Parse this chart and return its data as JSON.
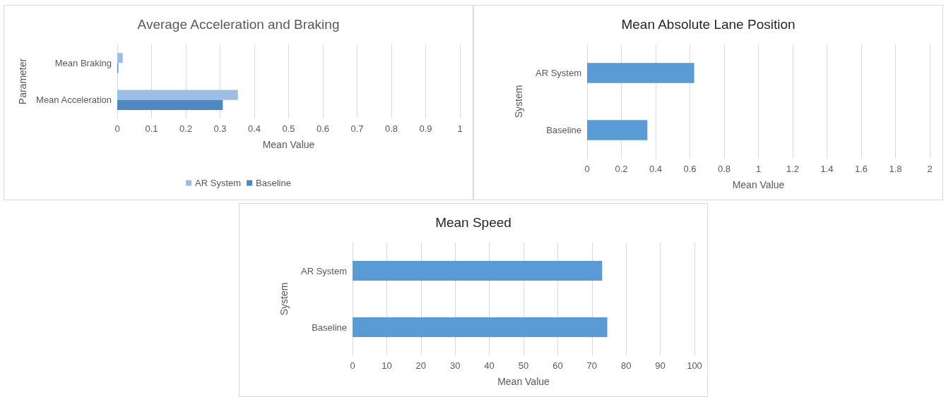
{
  "chart_data": [
    {
      "type": "bar",
      "orientation": "horizontal",
      "title": "Average Acceleration and Braking",
      "xlabel": "Mean Value",
      "ylabel": "Parameter",
      "categories": [
        "Mean Braking",
        "Mean Acceleration"
      ],
      "series": [
        {
          "name": "AR System",
          "color": "#9dbde3",
          "values": [
            0.016,
            0.352
          ]
        },
        {
          "name": "Baseline",
          "color": "#4f88bf",
          "values": [
            0.003,
            0.308
          ]
        }
      ],
      "xlim": [
        0,
        1
      ],
      "xticks": [
        0,
        0.1,
        0.2,
        0.3,
        0.4,
        0.5,
        0.6,
        0.7,
        0.8,
        0.9,
        1
      ],
      "grid": "x",
      "legend": "bottom"
    },
    {
      "type": "bar",
      "orientation": "horizontal",
      "title": "Mean Absolute Lane Position",
      "xlabel": "Mean Value",
      "ylabel": "System",
      "categories": [
        "AR System",
        "Baseline"
      ],
      "color": "#5b9bd5",
      "values": [
        0.625,
        0.352
      ],
      "xlim": [
        0,
        2
      ],
      "xticks": [
        0,
        0.2,
        0.4,
        0.6,
        0.8,
        1,
        1.2,
        1.4,
        1.6,
        1.8,
        2
      ],
      "grid": "x"
    },
    {
      "type": "bar",
      "orientation": "horizontal",
      "title": "Mean Speed",
      "xlabel": "Mean Value",
      "ylabel": "System",
      "categories": [
        "AR System",
        "Baseline"
      ],
      "color": "#5b9bd5",
      "values": [
        73,
        74.5
      ],
      "xlim": [
        0,
        100
      ],
      "xticks": [
        0,
        10,
        20,
        30,
        40,
        50,
        60,
        70,
        80,
        90,
        100
      ],
      "grid": "x"
    }
  ]
}
